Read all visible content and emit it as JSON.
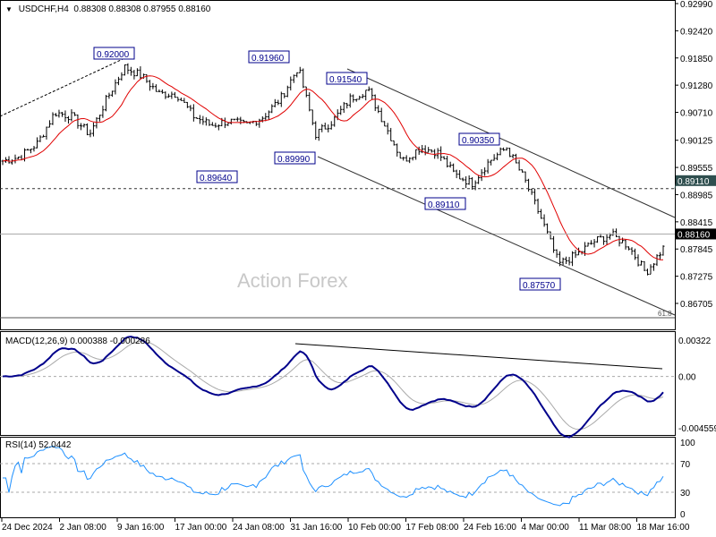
{
  "header": {
    "symbol": "USDCHF,H4",
    "open": "0.88308",
    "high": "0.88308",
    "low": "0.87955",
    "close": "0.88160"
  },
  "watermark": "Action Forex",
  "chart_data": {
    "type": "line",
    "title": "USDCHF,H4",
    "price_axis": {
      "ticks": [
        "0.92990",
        "0.92420",
        "0.91850",
        "0.91280",
        "0.90710",
        "0.90125",
        "0.89555",
        "0.88985",
        "0.88415",
        "0.87845",
        "0.87275",
        "0.86705"
      ],
      "range": [
        0.86705,
        0.9299
      ]
    },
    "time_axis": [
      "24 Dec 2024",
      "2 Jan 08:00",
      "9 Jan 16:00",
      "17 Jan 00:00",
      "24 Jan 08:00",
      "31 Jan 16:00",
      "10 Feb 00:00",
      "17 Feb 08:00",
      "24 Feb 16:00",
      "4 Mar 00:00",
      "11 Mar 08:00",
      "18 Mar 16:00"
    ],
    "close_samples": [
      0.8969,
      0.8978,
      0.9006,
      0.9071,
      0.9062,
      0.9025,
      0.91,
      0.9166,
      0.9147,
      0.911,
      0.911,
      0.9062,
      0.9044,
      0.9053,
      0.9044,
      0.9062,
      0.91,
      0.9166,
      0.9025,
      0.9053,
      0.91,
      0.9119,
      0.9044,
      0.8969,
      0.8997,
      0.8988,
      0.8941,
      0.8922,
      0.8969,
      0.8997,
      0.8932,
      0.8847,
      0.8753,
      0.8772,
      0.88,
      0.8815,
      0.8791,
      0.8735,
      0.8786
    ],
    "swing_labels": [
      "0.92000",
      "0.91960",
      "0.89640",
      "0.89990",
      "0.91540",
      "0.90350",
      "0.89110",
      "0.87570"
    ],
    "levels": {
      "resistance": "0.89110",
      "current": "0.88160",
      "fib_label": "61.8"
    },
    "moving_average": {
      "color": "#e00000"
    },
    "macd": {
      "label": "MACD(12,26,9)",
      "main": "0.000388",
      "signal": "-0.000286",
      "ticks": [
        "0.00322",
        "0.00",
        "-0.004559"
      ],
      "range": [
        -0.004559,
        0.00322
      ],
      "color": "#00008b"
    },
    "rsi": {
      "label": "RSI(14)",
      "value": "52.0442",
      "ticks": [
        "100",
        "70",
        "30",
        "0"
      ],
      "color": "#1e90ff"
    }
  }
}
